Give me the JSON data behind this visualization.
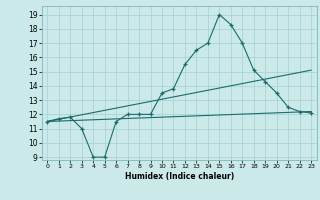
{
  "title": "",
  "xlabel": "Humidex (Indice chaleur)",
  "bg_color": "#cce9e9",
  "grid_color": "#aad4d4",
  "line_color": "#1a6b6b",
  "xlim": [
    -0.5,
    23.5
  ],
  "ylim": [
    8.8,
    19.6
  ],
  "yticks": [
    9,
    10,
    11,
    12,
    13,
    14,
    15,
    16,
    17,
    18,
    19
  ],
  "xticks": [
    0,
    1,
    2,
    3,
    4,
    5,
    6,
    7,
    8,
    9,
    10,
    11,
    12,
    13,
    14,
    15,
    16,
    17,
    18,
    19,
    20,
    21,
    22,
    23
  ],
  "main_line": {
    "x": [
      0,
      1,
      2,
      3,
      4,
      5,
      6,
      7,
      8,
      9,
      10,
      11,
      12,
      13,
      14,
      15,
      16,
      17,
      18,
      19,
      20,
      21,
      22,
      23
    ],
    "y": [
      11.5,
      11.7,
      11.8,
      11.0,
      9.0,
      9.0,
      11.5,
      12.0,
      12.0,
      12.0,
      13.5,
      13.8,
      15.5,
      16.5,
      17.0,
      19.0,
      18.3,
      17.0,
      15.1,
      14.3,
      13.5,
      12.5,
      12.2,
      12.1
    ]
  },
  "line2": {
    "x": [
      0,
      23
    ],
    "y": [
      11.5,
      12.2
    ]
  },
  "line3": {
    "x": [
      0,
      23
    ],
    "y": [
      11.5,
      15.1
    ]
  }
}
